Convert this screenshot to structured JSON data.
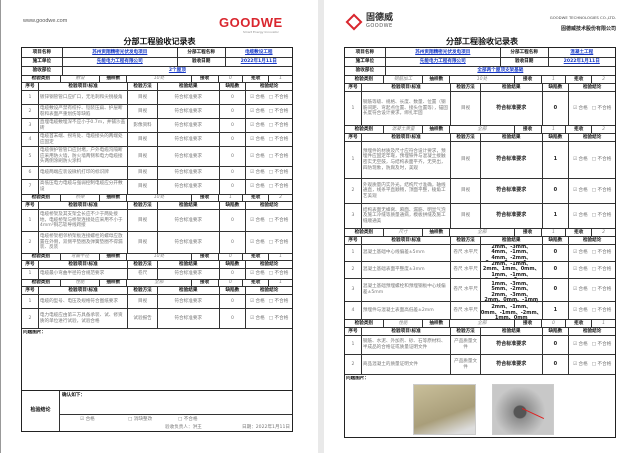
{
  "left": {
    "url": "www.goodwe.com",
    "logo": "GOODWE",
    "logo_tagline": "Smart Energy Innovator",
    "title": "分部工程验收记录表",
    "header": {
      "project_label": "项目名称",
      "project": "苏州资翔精密光伏发电项目",
      "sub_label": "分部工程名称",
      "sub": "电缆敷设工程",
      "builder_label": "施工单位",
      "builder": "先能电力工程有限公司",
      "date_label": "验收日期",
      "date": "2022年1月11日",
      "part_label": "验收部位",
      "part": "2个屋顶"
    },
    "labels": {
      "category": "检验类别",
      "sample": "抽样数",
      "accept": "接收",
      "reject": "拒收",
      "no": "序号",
      "item": "检验项目\\标准",
      "method": "检验方法",
      "result": "检验结果",
      "defects": "缺陷数",
      "conclusion": "检验结论",
      "pass": "☑ 合格",
      "fail": "□ 不合格"
    },
    "sections": [
      {
        "category": "敷设",
        "sample": "10处",
        "accept": "0",
        "reject": "1",
        "items": [
          {
            "no": "1",
            "item": "镀锌钢管管口应扩口，无毛刺和尖锐棱角",
            "method": "目视",
            "result": "符合标准要求",
            "defects": "0"
          },
          {
            "no": "2",
            "item": "电缆敷设严禁有绞拧、铠装压扁、护层断裂和表面严重划伤等缺陷",
            "method": "目视",
            "result": "符合标准要求",
            "defects": "0"
          },
          {
            "no": "3",
            "item": "直埋电缆敷埋深不应小于0.7m，并铺沙盖砖",
            "method": "影像资料",
            "result": "符合标准要求",
            "defects": "0"
          },
          {
            "no": "4",
            "item": "电缆首末端、拐弯处、电缆接头的两端处应固定",
            "method": "目视",
            "result": "符合标准要求",
            "defects": "0"
          },
          {
            "no": "5",
            "item": "电缆保护管管口应封堵，户外电缆沟隔断应采用防火墙，防火墙两侧和电力电缆接头两侧涂刷防火涂料",
            "method": "目视",
            "result": "符合标准要求",
            "defects": "0"
          },
          {
            "no": "6",
            "item": "电缆两端应装设微机打印的标识牌",
            "method": "目视",
            "result": "符合标准要求",
            "defects": "0"
          },
          {
            "no": "7",
            "item": "高低压电力电缆与强弱控制电缆应分开敷设",
            "method": "目视",
            "result": "符合标准要求",
            "defects": "0"
          }
        ]
      },
      {
        "category": "桥架",
        "sample": "10处",
        "accept": "1",
        "reject": "2",
        "items": [
          {
            "no": "1",
            "item": "电缆桥架及其支架全长应不少于两处接地，电缆桥架与桥架连接处应采用不小于4mm²铜芯软导线跨接",
            "method": "目视",
            "result": "符合标准要求",
            "defects": "0"
          },
          {
            "no": "2",
            "item": "电缆桥架相邻桥架板连接螺栓的螺母应放置在外侧，双侧平垫圈及弹簧垫圈不得漏装、反装",
            "method": "目视",
            "result": "符合标准要求",
            "defects": "0"
          }
        ]
      },
      {
        "category": "弯曲半径",
        "sample": "10处",
        "accept": "0",
        "reject": "1",
        "items": [
          {
            "no": "1",
            "item": "电缆最小弯曲半径符合规范要求",
            "method": "卷尺",
            "result": "符合标准要求",
            "defects": "0"
          }
        ]
      },
      {
        "category": "性能",
        "sample": "全部",
        "accept": "0",
        "reject": "1",
        "items": [
          {
            "no": "1",
            "item": "电缆的型号、电压及规格符合图纸要求",
            "method": "目视",
            "result": "符合标准要求",
            "defects": "0"
          },
          {
            "no": "2",
            "item": "电力电缆应由第三方具备承装、试、修资质的单位进行试验，试验合格",
            "method": "试验报告",
            "result": "符合标准要求",
            "defects": "0"
          }
        ]
      }
    ],
    "photos_label": "问题图片：",
    "final": {
      "label": "检验结论",
      "confirm": "确认如下：",
      "opt_pass": "☑ 合格",
      "opt_fix": "□ 消缺整改",
      "opt_fail": "□ 不合格",
      "signer": "验收负责人：洪王",
      "date": "日期：2022年1月11日"
    }
  },
  "right": {
    "logo_cn": "固德威",
    "logo_en": "GOODWE",
    "company_en": "GOODWE TECHNOLOGIES CO.,LTD.",
    "company_cn": "固德威技术股份有限公司",
    "title": "分部工程验收记录表",
    "header": {
      "project_label": "项目名称",
      "project": "苏州资翔精密光伏发电项目",
      "sub_label": "分部工程名称",
      "sub": "混凝土工程",
      "builder_label": "施工单位",
      "builder": "先能电力工程有限公司",
      "date_label": "验收日期",
      "date": "2022年1月11日",
      "part_label": "验收部位",
      "part": "全部两个屋顶支架基础"
    },
    "sections": [
      {
        "category": "钢筋加工",
        "sample": "10处",
        "accept": "1",
        "reject": "2",
        "items": [
          {
            "no": "1",
            "item": "钢筋等级、规格、长度、数量、位置（钢筋间距、弯起点位置、接头位置等），锚固长度符合设计要求，绑扎牢固",
            "method": "目视",
            "result": "符合标准要求",
            "defects": "0"
          }
        ]
      },
      {
        "category": "混凝土质量",
        "sample": "全部",
        "accept": "1",
        "reject": "2",
        "items": [
          {
            "no": "1",
            "item": "预埋件的材质及尺寸应符合设计要求，预埋件应固定牢靠，预埋铁件与混凝土接触密实无空鼓，与结构表面平齐，无突出，四防现象，防腐及时，美观",
            "method": "目视",
            "result": "符合标准要求",
            "defects": "1"
          },
          {
            "no": "2",
            "item": "外观质量内实外光，结构尺寸准确，轴线通直，线条平直顺畅，顶面平整，棱角工艺美观",
            "method": "目视",
            "result": "符合标准要求",
            "defects": "0"
          },
          {
            "no": "3",
            "item": "结构表面无蜂窝、麻面、漏筋、明显气泡及施工冷缝等质量通病，模板拼缝及施工缝顺通美",
            "method": "目视",
            "result": "符合标准要求",
            "defects": "1"
          }
        ]
      },
      {
        "category": "尺寸",
        "sample": "全部",
        "accept": "1",
        "reject": "2",
        "items": [
          {
            "no": "1",
            "item": "混凝土基础中心线偏差±5mm",
            "method": "卷尺 水平尺",
            "result": "0mm、2mm、-3mm、4mm、-1mm、4mm、-2mm、3mm、0mm、1mm",
            "defects": "0"
          },
          {
            "no": "2",
            "item": "混凝土基础表面平整度±3mm",
            "method": "卷尺 水平尺",
            "result": "0mm、2mm、-1mm、2mm、1mm、0mm、1mm、-1mm、2mm、0mm",
            "defects": "0"
          },
          {
            "no": "3",
            "item": "混凝土基础预埋螺栓和预埋钢板中心线偏差±5mm",
            "method": "卷尺 水平尺",
            "result": "0mm、1mm、-3mm、5mm、-2mm、2mm、-3mm、2mm、0mm、-1mm",
            "defects": "0"
          },
          {
            "no": "4",
            "item": "预埋件与混凝土表面高低差±2mm",
            "method": "卷尺 水平尺",
            "result": "0mm、1mm、-5mm、2mm、-1mm、0mm、-1mm、-2mm、1mm、0mm",
            "defects": "1"
          }
        ]
      },
      {
        "category": "性能",
        "sample": "全部",
        "accept": "0",
        "reject": "1",
        "items": [
          {
            "no": "1",
            "item": "钢筋、水泥、外加剂、砂、石等原材料、半成品的合格证或质量证明文件",
            "method": "产品质量文件",
            "result": "符合标准要求",
            "defects": "0"
          },
          {
            "no": "2",
            "item": "商品混凝土的质量证明文件",
            "method": "产品质量文件",
            "result": "符合标准要求",
            "defects": "0"
          }
        ]
      }
    ],
    "photos_label": "问题图片：",
    "colors": {
      "concrete": "#c9bf9a",
      "metal": "#8d8d8d",
      "arrow": "#e02020"
    }
  }
}
